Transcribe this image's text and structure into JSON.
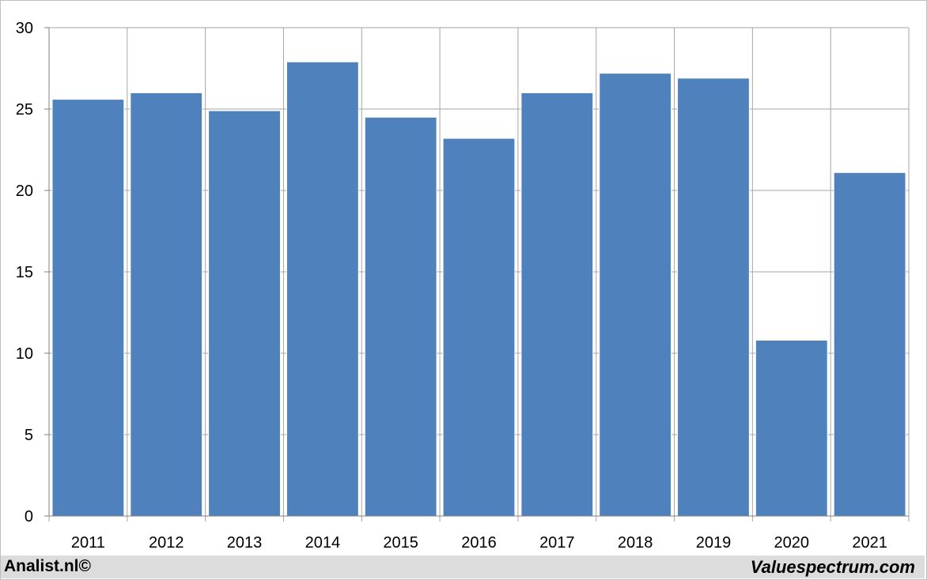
{
  "chart_data": {
    "type": "bar",
    "categories": [
      "2011",
      "2012",
      "2013",
      "2014",
      "2015",
      "2016",
      "2017",
      "2018",
      "2019",
      "2020",
      "2021"
    ],
    "values": [
      25.6,
      26.0,
      24.9,
      27.9,
      24.5,
      23.2,
      26.0,
      27.2,
      26.9,
      10.8,
      21.1
    ],
    "ylim": [
      0,
      30
    ],
    "yticks": [
      "0",
      "5",
      "10",
      "15",
      "20",
      "25",
      "30"
    ],
    "grid": true,
    "bar_color": "#4f81bd",
    "grid_color": "#a6a6a6"
  },
  "footer": {
    "left_text": "Analist.nl©",
    "right_text": "Valuespectrum.com",
    "background": "#dcdcdc"
  }
}
